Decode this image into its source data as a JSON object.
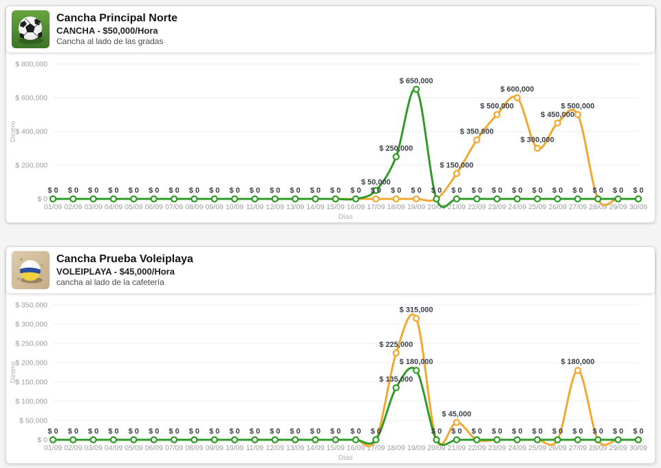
{
  "page": {
    "background_color": "#f4f4f5"
  },
  "cards": [
    {
      "title": "Cancha Principal Norte",
      "subtitle": "CANCHA - $50,000/Hora",
      "description": "Cancha al lado de las gradas",
      "icon": "soccer-ball-photo"
    },
    {
      "title": "Cancha Prueba Voleiplaya",
      "subtitle": "VOLEIPLAYA - $45,000/Hora",
      "description": "cancha al lado de la cafetería",
      "icon": "volleyball-photo"
    }
  ],
  "chart_data": [
    {
      "type": "line",
      "title": "Cancha Principal Norte - ingresos por día",
      "xlabel": "Dias",
      "ylabel": "Dinero",
      "ylim": [
        0,
        800000
      ],
      "ytick_step": 200000,
      "grid": true,
      "legend": "none",
      "x": [
        "01/09",
        "02/09",
        "03/09",
        "04/09",
        "05/09",
        "06/09",
        "07/09",
        "08/09",
        "09/09",
        "10/09",
        "11/09",
        "12/09",
        "13/09",
        "14/09",
        "15/09",
        "16/09",
        "17/09",
        "18/09",
        "19/09",
        "20/09",
        "21/09",
        "22/09",
        "23/09",
        "24/09",
        "25/09",
        "26/09",
        "27/09",
        "28/09",
        "29/09",
        "30/09"
      ],
      "series": [
        {
          "name": "series-orange",
          "color": "#f3a72e",
          "values": [
            0,
            0,
            0,
            0,
            0,
            0,
            0,
            0,
            0,
            0,
            0,
            0,
            0,
            0,
            0,
            0,
            0,
            0,
            0,
            0,
            150000,
            350000,
            500000,
            600000,
            300000,
            450000,
            500000,
            0,
            0,
            0
          ]
        },
        {
          "name": "series-green",
          "color": "#2e9b27",
          "values": [
            0,
            0,
            0,
            0,
            0,
            0,
            0,
            0,
            0,
            0,
            0,
            0,
            0,
            0,
            0,
            0,
            50000,
            250000,
            650000,
            0,
            0,
            0,
            0,
            0,
            0,
            0,
            0,
            0,
            0,
            0
          ]
        }
      ]
    },
    {
      "type": "line",
      "title": "Cancha Prueba Voleiplaya - ingresos por día",
      "xlabel": "Dias",
      "ylabel": "Dinero",
      "ylim": [
        0,
        350000
      ],
      "ytick_step": 50000,
      "grid": true,
      "legend": "none",
      "x": [
        "01/09",
        "02/09",
        "03/09",
        "04/09",
        "05/09",
        "06/09",
        "07/09",
        "08/09",
        "09/09",
        "10/09",
        "11/09",
        "12/09",
        "13/09",
        "14/09",
        "15/09",
        "16/09",
        "17/09",
        "18/09",
        "19/09",
        "20/09",
        "21/09",
        "22/09",
        "23/09",
        "24/09",
        "25/09",
        "26/09",
        "27/09",
        "28/09",
        "29/09",
        "30/09"
      ],
      "series": [
        {
          "name": "series-orange",
          "color": "#f3a72e",
          "values": [
            0,
            0,
            0,
            0,
            0,
            0,
            0,
            0,
            0,
            0,
            0,
            0,
            0,
            0,
            0,
            0,
            0,
            225000,
            315000,
            0,
            45000,
            0,
            0,
            0,
            0,
            0,
            180000,
            0,
            0,
            0
          ]
        },
        {
          "name": "series-green",
          "color": "#2e9b27",
          "values": [
            0,
            0,
            0,
            0,
            0,
            0,
            0,
            0,
            0,
            0,
            0,
            0,
            0,
            0,
            0,
            0,
            0,
            135000,
            180000,
            0,
            0,
            0,
            0,
            0,
            0,
            0,
            0,
            0,
            0,
            0
          ]
        }
      ]
    }
  ]
}
